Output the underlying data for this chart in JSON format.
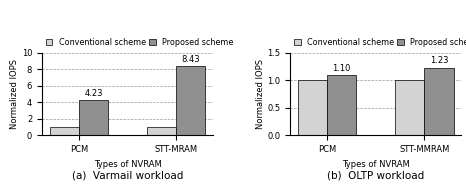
{
  "left_chart": {
    "categories": [
      "PCM",
      "STT-MRAM"
    ],
    "conventional": [
      1.0,
      1.0
    ],
    "proposed": [
      4.23,
      8.43
    ],
    "labels_proposed": [
      "4.23",
      "8.43"
    ],
    "ylabel": "Normalized IOPS",
    "xlabel": "Types of NVRAM",
    "caption": "(a)  Varmail workload",
    "ylim": [
      0,
      10
    ],
    "yticks": [
      0,
      2,
      4,
      6,
      8,
      10
    ]
  },
  "right_chart": {
    "categories": [
      "PCM",
      "STT-MMRAM"
    ],
    "conventional": [
      1.0,
      1.0
    ],
    "proposed": [
      1.1,
      1.23
    ],
    "labels_proposed": [
      "1.10",
      "1.23"
    ],
    "ylabel": "Normalized IOPS",
    "xlabel": "Types of NVRAM",
    "caption": "(b)  OLTP workload",
    "ylim": [
      0,
      1.5
    ],
    "yticks": [
      0.0,
      0.5,
      1.0,
      1.5
    ]
  },
  "color_conventional": "#d3d3d3",
  "color_proposed": "#909090",
  "bar_width": 0.3,
  "legend_labels": [
    "Conventional scheme",
    "Proposed scheme"
  ],
  "legend_fontsize": 5.8,
  "axis_fontsize": 6.0,
  "tick_fontsize": 6.0,
  "caption_fontsize": 7.5,
  "annotation_fontsize": 6.0
}
